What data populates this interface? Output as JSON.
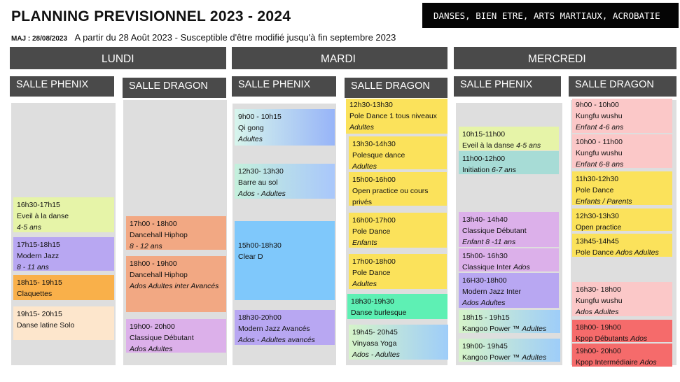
{
  "header": {
    "title": "PLANNING PREVISIONNEL 2023 - 2024",
    "badge": "DANSES, BIEN ETRE, ARTS MARTIAUX, ACROBATIE",
    "maj": "MAJ : 28/08/2023",
    "subtitle": "A partir du 28 Août 2023  - Susceptible d'être modifié jusqu'à fin septembre 2023"
  },
  "days": [
    "LUNDI",
    "MARDI",
    "MERCREDI"
  ],
  "rooms": [
    "SALLE PHENIX",
    "SALLE DRAGON",
    "SALLE PHENIX",
    "SALLE DRAGON",
    "SALLE PHENIX",
    "SALLE DRAGON"
  ],
  "colors": {
    "header_bg": "#4a4a4a",
    "column_bg": "#dedede",
    "green": "#e6f4a8",
    "purple": "#b8a7f2",
    "orange": "#f9b04a",
    "peach": "#fde6cc",
    "salmon": "#f2a883",
    "lilac": "#dcb0ea",
    "yellow": "#fbe25b",
    "blue": "#7fc8fb",
    "teal": "#a7dcd6",
    "mint": "#5ef0b4",
    "pink": "#fbc8c8",
    "red": "#f56b6b",
    "grad_teal_blue": "linear-gradient(90deg,#d7f5ec 0%,#97b4f8 100%)",
    "grad_mint_blue": "linear-gradient(90deg,#c4f0dc 0%,#a9c7fb 100%)",
    "grad_green_blue": "linear-gradient(90deg,#d6f4c9 0%,#9ecdf9 100%)"
  },
  "classes": [
    {
      "room": 0,
      "time": "16h30-17h15",
      "name": "Eveil à la danse",
      "audience": "4-5 ans"
    },
    {
      "room": 0,
      "time": "17h15-18h15",
      "name": "Modern Jazz",
      "audience": "8 - 11 ans"
    },
    {
      "room": 0,
      "time": "18h15- 19h15",
      "name": "Claquettes",
      "audience": ""
    },
    {
      "room": 0,
      "time": "19h15- 20h15",
      "name": "Danse latine Solo",
      "audience": ""
    },
    {
      "room": 1,
      "time": "17h00 - 18h00",
      "name": "Dancehall Hiphop",
      "audience": "8 - 12 ans"
    },
    {
      "room": 1,
      "time": "18h00 - 19h00",
      "name": "Dancehall Hiphop",
      "audience": "Ados Adultes inter Avancés"
    },
    {
      "room": 1,
      "time": "19h00- 20h00",
      "name": "Classique Débutant",
      "audience": "Ados Adultes"
    },
    {
      "room": 2,
      "time": "9h00 - 10h15",
      "name": "Qi gong",
      "audience": "Adultes"
    },
    {
      "room": 2,
      "time": "12h30- 13h30",
      "name": "Barre au sol",
      "audience": "Ados - Adultes"
    },
    {
      "room": 2,
      "time": "15h00-18h30",
      "name": "Clear D",
      "audience": ""
    },
    {
      "room": 2,
      "time": "18h30-20h00",
      "name": "Modern Jazz Avancés",
      "audience": "Ados - Adultes avancés"
    },
    {
      "room": 3,
      "time": "12h30-13h30",
      "name": "Pole Dance 1 tous niveaux",
      "audience": "Adultes"
    },
    {
      "room": 3,
      "time": "13h30-14h30",
      "name": "Polesque dance",
      "audience": "Adultes"
    },
    {
      "room": 3,
      "time": "15h00-16h00",
      "name": "Open practice ou cours privés",
      "audience": ""
    },
    {
      "room": 3,
      "time": "16h00-17h00",
      "name": "Pole Dance",
      "audience": "Enfants"
    },
    {
      "room": 3,
      "time": "17h00-18h00",
      "name": "Pole Dance",
      "audience": "Adultes"
    },
    {
      "room": 3,
      "time": "18h30-19h30",
      "name": "Danse burlesque",
      "audience": ""
    },
    {
      "room": 3,
      "time": "19h45- 20h45",
      "name": "Vinyasa Yoga",
      "audience": "Ados - Adultes"
    },
    {
      "room": 4,
      "time": "10h15-11h00",
      "name": "Eveil à la danse",
      "audience": "4-5 ans"
    },
    {
      "room": 4,
      "time": "11h00-12h00",
      "name": "Initiation",
      "audience": "6-7 ans"
    },
    {
      "room": 4,
      "time": "13h40- 14h40",
      "name": "Classique Débutant",
      "audience": "Enfant 8 -11 ans"
    },
    {
      "room": 4,
      "time": "15h00- 16h30",
      "name": "Classique Inter",
      "audience": "Ados"
    },
    {
      "room": 4,
      "time": "16H30-18h00",
      "name": "Modern Jazz Inter",
      "audience": "Ados Adultes"
    },
    {
      "room": 4,
      "time": "18h15 - 19h15",
      "name": "Kangoo Power ™",
      "audience": "Adultes"
    },
    {
      "room": 4,
      "time": "19h00- 19h45",
      "name": "Kangoo Power ™",
      "audience": "Adultes"
    },
    {
      "room": 5,
      "time": "9h00 - 10h00",
      "name": "Kungfu wushu",
      "audience": "Enfant 4-6 ans"
    },
    {
      "room": 5,
      "time": "10h00 - 11h00",
      "name": "Kungfu wushu",
      "audience": "Enfant 6-8 ans"
    },
    {
      "room": 5,
      "time": "11h30-12h30",
      "name": "Pole Dance",
      "audience": "Enfants / Parents"
    },
    {
      "room": 5,
      "time": "12h30-13h30",
      "name": "Open practice",
      "audience": ""
    },
    {
      "room": 5,
      "time": "13h45-14h45",
      "name": "Pole Dance",
      "audience": "Ados Adultes"
    },
    {
      "room": 5,
      "time": "16h30- 18h00",
      "name": "Kungfu wushu",
      "audience": "Ados Adultes"
    },
    {
      "room": 5,
      "time": "18h00- 19h00",
      "name": "Kpop Débutants",
      "audience": "Ados"
    },
    {
      "room": 5,
      "time": "19h00- 20h00",
      "name": "Kpop  Intermédiaire",
      "audience": "Ados"
    }
  ]
}
